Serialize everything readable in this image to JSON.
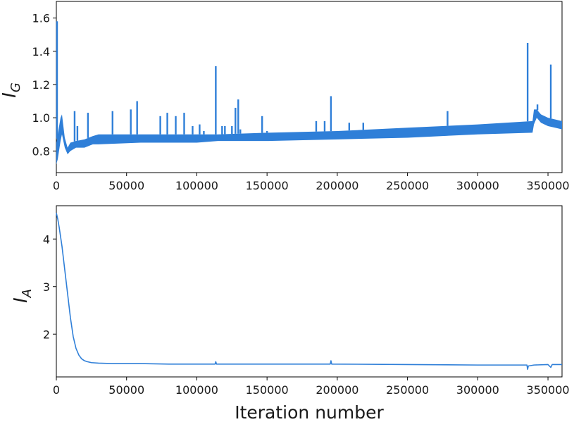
{
  "chart_data": [
    {
      "type": "line",
      "title": "",
      "xlabel": "",
      "ylabel": "I_G",
      "ylabel_main": "I",
      "ylabel_sub": "G",
      "xlim": [
        0,
        360000
      ],
      "ylim": [
        0.67,
        1.7
      ],
      "x_ticks": [
        0,
        50000,
        100000,
        150000,
        200000,
        250000,
        300000,
        350000
      ],
      "x_tick_labels": [
        "0",
        "50000",
        "100000",
        "150000",
        "200000",
        "250000",
        "300000",
        "350000"
      ],
      "y_ticks": [
        0.8,
        1.0,
        1.2,
        1.4,
        1.6
      ],
      "y_tick_labels": [
        "0.8",
        "1.0",
        "1.2",
        "1.4",
        "1.6"
      ],
      "grid": false,
      "color": "#2f7fd8",
      "baseline": {
        "x": [
          0,
          1000,
          3000,
          4000,
          6000,
          8000,
          10000,
          14000,
          20000,
          26000,
          30000,
          60000,
          100000,
          115000,
          150000,
          200000,
          250000,
          300000,
          339000,
          340000,
          342000,
          345000,
          350000,
          355000,
          360000
        ],
        "y_low": [
          0.72,
          0.75,
          0.86,
          0.9,
          0.82,
          0.78,
          0.8,
          0.82,
          0.82,
          0.84,
          0.84,
          0.85,
          0.85,
          0.86,
          0.86,
          0.87,
          0.88,
          0.9,
          0.91,
          0.96,
          1.0,
          0.97,
          0.95,
          0.94,
          0.93
        ],
        "y_high": [
          0.85,
          0.9,
          1.0,
          1.02,
          0.88,
          0.82,
          0.85,
          0.86,
          0.87,
          0.89,
          0.9,
          0.9,
          0.9,
          0.9,
          0.91,
          0.92,
          0.94,
          0.96,
          0.98,
          1.05,
          1.05,
          1.02,
          1.0,
          0.99,
          0.98
        ]
      },
      "spikes": [
        {
          "x": 500,
          "y": 1.58
        },
        {
          "x": 13000,
          "y": 1.04
        },
        {
          "x": 15000,
          "y": 0.95
        },
        {
          "x": 22500,
          "y": 1.03
        },
        {
          "x": 40000,
          "y": 1.04
        },
        {
          "x": 53000,
          "y": 1.05
        },
        {
          "x": 57500,
          "y": 1.1
        },
        {
          "x": 74000,
          "y": 1.01
        },
        {
          "x": 79000,
          "y": 1.03
        },
        {
          "x": 85000,
          "y": 1.01
        },
        {
          "x": 91000,
          "y": 1.03
        },
        {
          "x": 97000,
          "y": 0.95
        },
        {
          "x": 102000,
          "y": 0.96
        },
        {
          "x": 105000,
          "y": 0.92
        },
        {
          "x": 113500,
          "y": 1.31
        },
        {
          "x": 118000,
          "y": 0.95
        },
        {
          "x": 120000,
          "y": 0.95
        },
        {
          "x": 125000,
          "y": 0.95
        },
        {
          "x": 127500,
          "y": 1.06
        },
        {
          "x": 129500,
          "y": 1.11
        },
        {
          "x": 131000,
          "y": 0.93
        },
        {
          "x": 146500,
          "y": 1.01
        },
        {
          "x": 150000,
          "y": 0.92
        },
        {
          "x": 185000,
          "y": 0.98
        },
        {
          "x": 191000,
          "y": 0.98
        },
        {
          "x": 195500,
          "y": 1.13
        },
        {
          "x": 208500,
          "y": 0.97
        },
        {
          "x": 218500,
          "y": 0.97
        },
        {
          "x": 278500,
          "y": 1.04
        },
        {
          "x": 335500,
          "y": 1.45
        },
        {
          "x": 342500,
          "y": 1.08
        },
        {
          "x": 352000,
          "y": 1.32
        }
      ]
    },
    {
      "type": "line",
      "title": "",
      "xlabel": "Iteration number",
      "ylabel": "I_A",
      "ylabel_main": "I",
      "ylabel_sub": "A",
      "xlim": [
        0,
        360000
      ],
      "ylim": [
        1.1,
        4.7
      ],
      "x_ticks": [
        0,
        50000,
        100000,
        150000,
        200000,
        250000,
        300000,
        350000
      ],
      "x_tick_labels": [
        "0",
        "50000",
        "100000",
        "150000",
        "200000",
        "250000",
        "300000",
        "350000"
      ],
      "y_ticks": [
        2,
        3,
        4
      ],
      "y_tick_labels": [
        "2",
        "3",
        "4"
      ],
      "grid": false,
      "color": "#2f7fd8",
      "x": [
        0,
        1000,
        2000,
        4000,
        6000,
        8000,
        10000,
        12000,
        14000,
        16000,
        18000,
        20000,
        22000,
        25000,
        30000,
        40000,
        60000,
        80000,
        100000,
        113000,
        113500,
        114000,
        150000,
        195000,
        195500,
        196000,
        250000,
        300000,
        335000,
        335500,
        336000,
        340000,
        350000,
        352000,
        353000,
        360000
      ],
      "y": [
        4.55,
        4.42,
        4.25,
        3.85,
        3.35,
        2.85,
        2.35,
        1.95,
        1.7,
        1.56,
        1.48,
        1.44,
        1.42,
        1.4,
        1.39,
        1.38,
        1.38,
        1.37,
        1.37,
        1.37,
        1.42,
        1.37,
        1.37,
        1.37,
        1.44,
        1.37,
        1.36,
        1.35,
        1.35,
        1.26,
        1.33,
        1.35,
        1.36,
        1.3,
        1.36,
        1.36
      ]
    }
  ]
}
